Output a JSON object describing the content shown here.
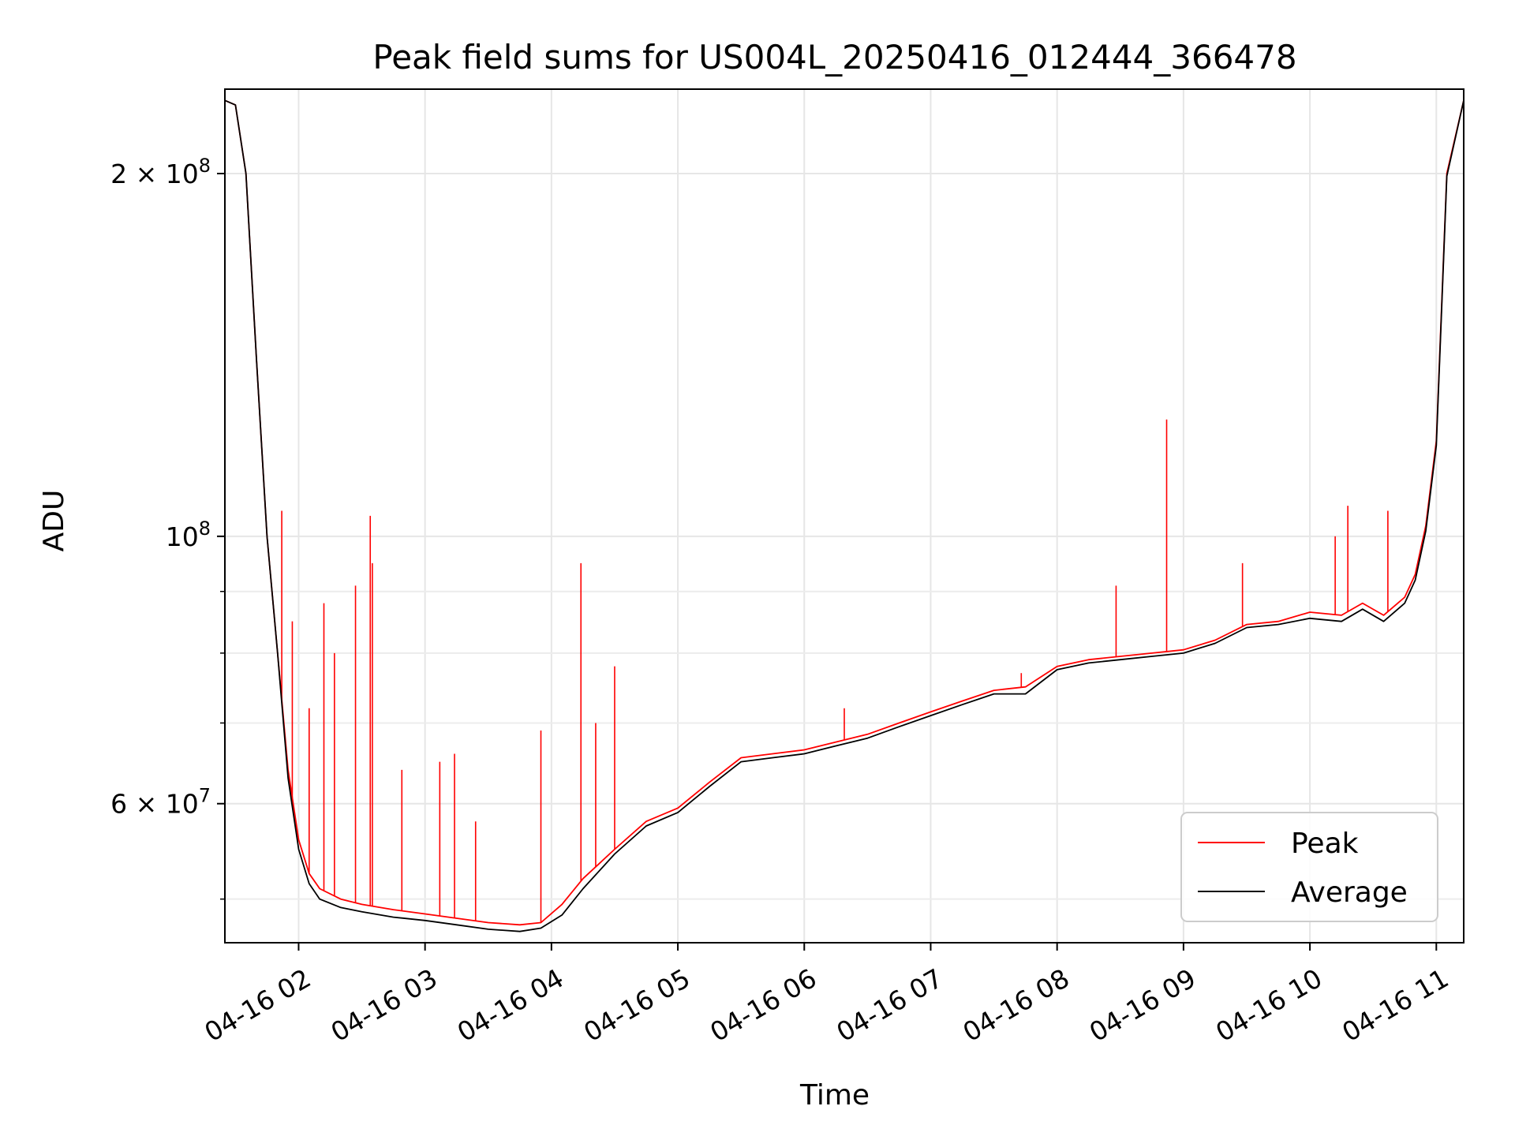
{
  "chart_data": {
    "type": "line",
    "title": "Peak field sums for US004L_20250416_012444_366478",
    "xlabel": "Time",
    "ylabel": "ADU",
    "x_type": "datetime",
    "y_scale": "log",
    "xlim": [
      "2025-04-16T01:25:00",
      "2025-04-16T11:13:00"
    ],
    "ylim": [
      46000000,
      235000000
    ],
    "x_ticks": [
      {
        "value": "2025-04-16T02:00:00",
        "label": "04-16 02"
      },
      {
        "value": "2025-04-16T03:00:00",
        "label": "04-16 03"
      },
      {
        "value": "2025-04-16T04:00:00",
        "label": "04-16 04"
      },
      {
        "value": "2025-04-16T05:00:00",
        "label": "04-16 05"
      },
      {
        "value": "2025-04-16T06:00:00",
        "label": "04-16 06"
      },
      {
        "value": "2025-04-16T07:00:00",
        "label": "04-16 07"
      },
      {
        "value": "2025-04-16T08:00:00",
        "label": "04-16 08"
      },
      {
        "value": "2025-04-16T09:00:00",
        "label": "04-16 09"
      },
      {
        "value": "2025-04-16T10:00:00",
        "label": "04-16 10"
      },
      {
        "value": "2025-04-16T11:00:00",
        "label": "04-16 11"
      }
    ],
    "y_major_ticks": [
      {
        "value": 60000000,
        "base": "6 × 10",
        "exp": "7"
      },
      {
        "value": 100000000,
        "base": "10",
        "exp": "8"
      },
      {
        "value": 200000000,
        "base": "2 × 10",
        "exp": "8"
      }
    ],
    "y_minor_ticks": [
      50000000,
      70000000,
      80000000,
      90000000
    ],
    "grid": true,
    "legend_position": "lower-right",
    "x": [
      "2025-04-16T01:25",
      "2025-04-16T01:30",
      "2025-04-16T01:35",
      "2025-04-16T01:40",
      "2025-04-16T01:45",
      "2025-04-16T01:50",
      "2025-04-16T01:55",
      "2025-04-16T02:00",
      "2025-04-16T02:05",
      "2025-04-16T02:10",
      "2025-04-16T02:20",
      "2025-04-16T02:30",
      "2025-04-16T02:45",
      "2025-04-16T03:00",
      "2025-04-16T03:15",
      "2025-04-16T03:30",
      "2025-04-16T03:45",
      "2025-04-16T03:55",
      "2025-04-16T04:05",
      "2025-04-16T04:15",
      "2025-04-16T04:30",
      "2025-04-16T04:45",
      "2025-04-16T05:00",
      "2025-04-16T05:15",
      "2025-04-16T05:30",
      "2025-04-16T05:45",
      "2025-04-16T06:00",
      "2025-04-16T06:15",
      "2025-04-16T06:30",
      "2025-04-16T06:45",
      "2025-04-16T07:00",
      "2025-04-16T07:15",
      "2025-04-16T07:30",
      "2025-04-16T07:45",
      "2025-04-16T08:00",
      "2025-04-16T08:15",
      "2025-04-16T08:30",
      "2025-04-16T08:45",
      "2025-04-16T09:00",
      "2025-04-16T09:15",
      "2025-04-16T09:30",
      "2025-04-16T09:45",
      "2025-04-16T10:00",
      "2025-04-16T10:15",
      "2025-04-16T10:25",
      "2025-04-16T10:35",
      "2025-04-16T10:45",
      "2025-04-16T10:50",
      "2025-04-16T10:55",
      "2025-04-16T11:00",
      "2025-04-16T11:05",
      "2025-04-16T11:13"
    ],
    "series": [
      {
        "name": "Peak",
        "color": "#ff0000",
        "values": [
          230000000,
          228000000,
          200000000,
          140000000,
          100000000,
          80000000,
          64000000,
          56000000,
          52500000,
          51000000,
          50000000,
          49500000,
          49000000,
          48600000,
          48200000,
          47800000,
          47600000,
          47800000,
          49500000,
          52000000,
          55000000,
          58000000,
          59500000,
          62500000,
          65500000,
          66000000,
          66500000,
          67500000,
          68500000,
          70000000,
          71500000,
          73000000,
          74500000,
          75000000,
          78000000,
          79000000,
          79500000,
          80000000,
          80500000,
          82000000,
          84500000,
          85000000,
          86500000,
          86000000,
          88000000,
          86000000,
          89000000,
          93000000,
          102000000,
          120000000,
          200000000,
          230000000
        ],
        "spikes": [
          {
            "x": "2025-04-16T01:52",
            "y": 105000000
          },
          {
            "x": "2025-04-16T01:57",
            "y": 85000000
          },
          {
            "x": "2025-04-16T02:05",
            "y": 72000000
          },
          {
            "x": "2025-04-16T02:12",
            "y": 88000000
          },
          {
            "x": "2025-04-16T02:17",
            "y": 80000000
          },
          {
            "x": "2025-04-16T02:27",
            "y": 91000000
          },
          {
            "x": "2025-04-16T02:34",
            "y": 104000000
          },
          {
            "x": "2025-04-16T02:35",
            "y": 95000000
          },
          {
            "x": "2025-04-16T02:49",
            "y": 64000000
          },
          {
            "x": "2025-04-16T03:07",
            "y": 65000000
          },
          {
            "x": "2025-04-16T03:14",
            "y": 66000000
          },
          {
            "x": "2025-04-16T03:24",
            "y": 58000000
          },
          {
            "x": "2025-04-16T03:55",
            "y": 69000000
          },
          {
            "x": "2025-04-16T04:14",
            "y": 95000000
          },
          {
            "x": "2025-04-16T04:21",
            "y": 70000000
          },
          {
            "x": "2025-04-16T04:30",
            "y": 78000000
          },
          {
            "x": "2025-04-16T06:19",
            "y": 72000000
          },
          {
            "x": "2025-04-16T07:43",
            "y": 77000000
          },
          {
            "x": "2025-04-16T08:28",
            "y": 91000000
          },
          {
            "x": "2025-04-16T08:52",
            "y": 125000000
          },
          {
            "x": "2025-04-16T09:28",
            "y": 95000000
          },
          {
            "x": "2025-04-16T10:12",
            "y": 100000000
          },
          {
            "x": "2025-04-16T10:18",
            "y": 106000000
          },
          {
            "x": "2025-04-16T10:37",
            "y": 105000000
          }
        ]
      },
      {
        "name": "Average",
        "color": "#000000",
        "values": [
          230000000,
          228000000,
          200000000,
          140000000,
          100000000,
          80000000,
          63000000,
          55000000,
          51500000,
          50000000,
          49200000,
          48800000,
          48300000,
          48000000,
          47600000,
          47200000,
          47000000,
          47300000,
          48500000,
          51000000,
          54500000,
          57500000,
          59000000,
          62000000,
          65000000,
          65500000,
          66000000,
          67000000,
          68000000,
          69500000,
          71000000,
          72500000,
          74000000,
          74000000,
          77500000,
          78500000,
          79000000,
          79500000,
          80000000,
          81500000,
          84000000,
          84500000,
          85500000,
          85000000,
          87000000,
          85000000,
          88000000,
          92000000,
          101000000,
          119000000,
          199000000,
          230000000
        ]
      }
    ]
  }
}
